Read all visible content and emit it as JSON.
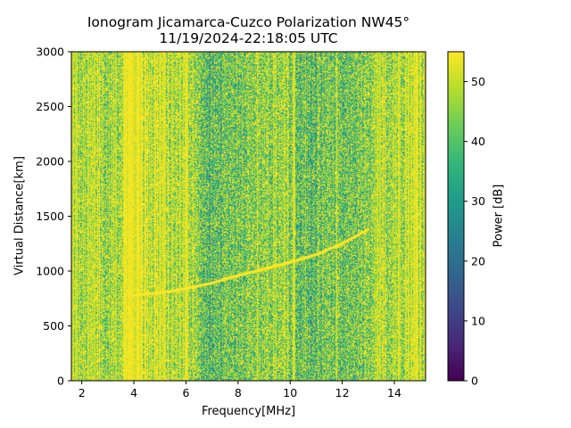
{
  "chart_data": {
    "type": "heatmap",
    "title": "Ionogram Jicamarca-Cuzco Polarization NW45°",
    "subtitle": "11/19/2024-22:18:05 UTC",
    "xlabel": "Frequency[MHz]",
    "ylabel": "Virtual Distance[km]",
    "xlim": [
      1.6,
      15.2
    ],
    "ylim": [
      0,
      3000
    ],
    "xticks": [
      2,
      4,
      6,
      8,
      10,
      12,
      14
    ],
    "xtick_labels": [
      "2",
      "4",
      "6",
      "8",
      "10",
      "12",
      "14"
    ],
    "yticks": [
      0,
      500,
      1000,
      1500,
      2000,
      2500,
      3000
    ],
    "ytick_labels": [
      "0",
      "500",
      "1000",
      "1500",
      "2000",
      "2500",
      "3000"
    ],
    "colormap": "viridis",
    "colorbar": {
      "label": "Power [dB]",
      "range": [
        0,
        55
      ],
      "ticks": [
        0,
        10,
        20,
        30,
        40,
        50
      ],
      "tick_labels": [
        "0",
        "10",
        "20",
        "30",
        "40",
        "50"
      ]
    },
    "background_power_profile": {
      "frequency_mhz": [
        1.6,
        2.0,
        2.5,
        3.0,
        3.4,
        3.8,
        4.2,
        4.6,
        5.0,
        5.5,
        6.0,
        6.4,
        6.8,
        7.2,
        7.6,
        8.0,
        8.5,
        9.0,
        9.5,
        10.0,
        10.5,
        11.0,
        11.5,
        12.0,
        12.5,
        13.0,
        13.5,
        14.0,
        14.5,
        15.2
      ],
      "mean_power_db": [
        50,
        47,
        49,
        46,
        50,
        54,
        54,
        52,
        51,
        48,
        51,
        46,
        38,
        37,
        42,
        44,
        44,
        45,
        46,
        43,
        40,
        38,
        44,
        39,
        42,
        44,
        47,
        50,
        51,
        50
      ]
    },
    "trace": {
      "name": "echo trace",
      "frequency_mhz": [
        4.0,
        5.0,
        6.0,
        7.0,
        8.0,
        9.0,
        10.0,
        11.0,
        12.0,
        13.0
      ],
      "virtual_distance_km": [
        780,
        800,
        840,
        890,
        960,
        1020,
        1080,
        1150,
        1250,
        1380
      ],
      "power_db": 55
    }
  }
}
